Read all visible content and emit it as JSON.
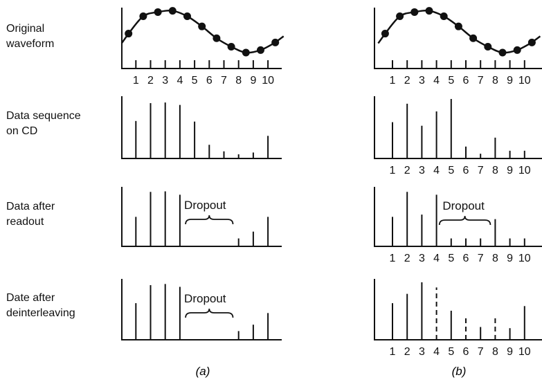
{
  "row_labels": [
    [
      "Original",
      "waveform"
    ],
    [
      "Data sequence",
      "on CD"
    ],
    [
      "Data after",
      "readout"
    ],
    [
      "Date after",
      "deinterleaving"
    ]
  ],
  "x_ticks": [
    "1",
    "2",
    "3",
    "4",
    "5",
    "6",
    "7",
    "8",
    "9",
    "10"
  ],
  "dropout_label": "Dropout",
  "panel_captions": [
    "(a)",
    "(b)"
  ],
  "waveform_samples": [
    0.45,
    0.86,
    0.96,
    0.99,
    0.86,
    0.62,
    0.34,
    0.14,
    0.0,
    0.06,
    0.24
  ],
  "panels": {
    "a": {
      "sequence": [
        0.63,
        0.93,
        0.94,
        0.9,
        0.62,
        0.23,
        0.12,
        0.07,
        0.1,
        0.38
      ],
      "readout": [
        0.52,
        0.96,
        0.97,
        0.91,
        0,
        0,
        0,
        0.14,
        0.26,
        0.52
      ],
      "readout_dropout": [
        5,
        6,
        7
      ],
      "deinterleaved": [
        0.63,
        0.94,
        0.96,
        0.91,
        0,
        0,
        0,
        0.15,
        0.26,
        0.46
      ],
      "deinterleaved_dropout": [
        5,
        6,
        7
      ],
      "deinterleaved_dashed": []
    },
    "b": {
      "sequence": [
        0.61,
        0.92,
        0.55,
        0.79,
        1.0,
        0.2,
        0.08,
        0.35,
        0.13,
        0.13
      ],
      "readout": [
        0.52,
        0.96,
        0.56,
        0.91,
        0.14,
        0.14,
        0.14,
        0.48,
        0.14,
        0.14
      ],
      "readout_dropout": [],
      "deinterleaved": [
        0.63,
        0.79,
        0.99,
        0.9,
        0.5,
        0.41,
        0.22,
        0.41,
        0.2,
        0.58
      ],
      "deinterleaved_dropout": [],
      "deinterleaved_dashed": [
        4,
        6,
        8
      ]
    }
  }
}
